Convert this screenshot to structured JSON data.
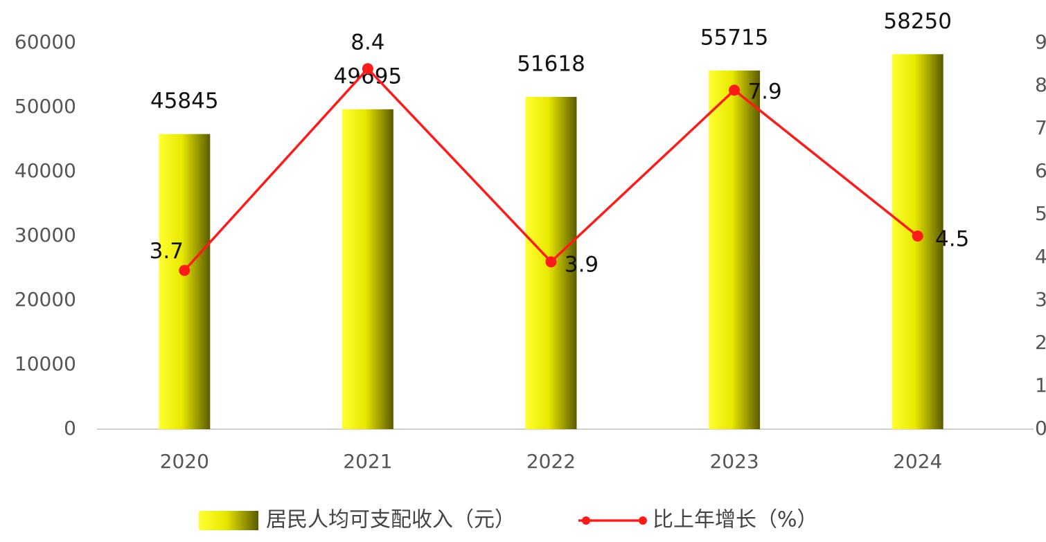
{
  "chart_data": {
    "type": "bar-line",
    "categories": [
      "2020",
      "2021",
      "2022",
      "2023",
      "2024"
    ],
    "series": [
      {
        "name": "居民人均可支配收入（元）",
        "type": "bar",
        "color": "#e8e800",
        "values": [
          45845,
          49695,
          51618,
          55715,
          58250
        ]
      },
      {
        "name": "比上年增长（%）",
        "type": "line",
        "axis": "y2",
        "color": "#ff1a1a",
        "values": [
          3.7,
          8.4,
          3.9,
          7.9,
          4.5
        ]
      }
    ],
    "ylim": [
      0,
      60000
    ],
    "yticks": [
      0,
      10000,
      20000,
      30000,
      40000,
      50000,
      60000
    ],
    "y2lim": [
      0,
      9
    ],
    "y2ticks": [
      0,
      1,
      2,
      3,
      4,
      5,
      6,
      7,
      8,
      9
    ],
    "grid": false,
    "legend": "bottom"
  }
}
